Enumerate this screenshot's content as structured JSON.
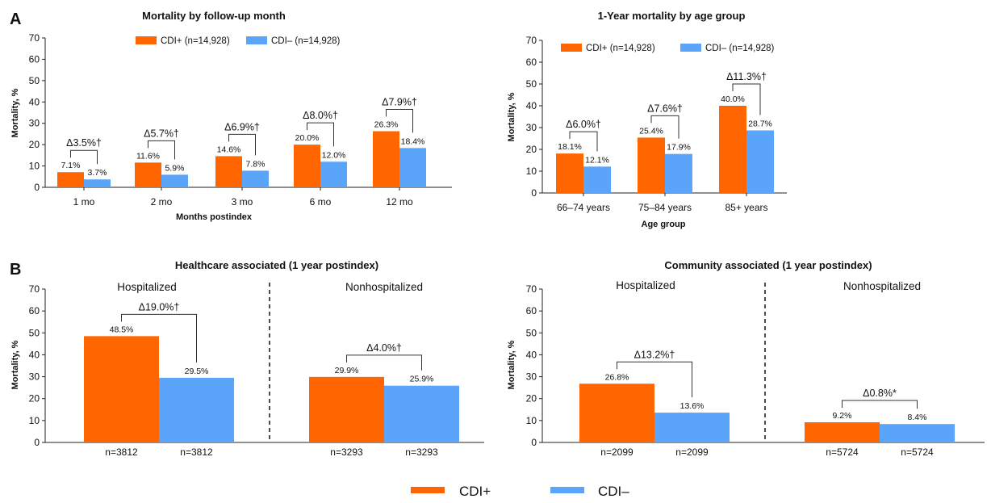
{
  "colors": {
    "cdi_pos": "#FF6600",
    "cdi_neg": "#5AA5FA"
  },
  "panels": [
    {
      "letter": "A"
    },
    {
      "letter": "B"
    }
  ],
  "bottom_legend": [
    "CDI+",
    "CDI–"
  ],
  "chart_data": [
    {
      "type": "bar",
      "title": "Mortality by follow-up month",
      "xlabel": "Months postindex",
      "ylabel": "Mortality, %",
      "ylim": [
        0,
        70
      ],
      "yticks": [
        "0",
        "10",
        "20",
        "30",
        "40",
        "50",
        "60",
        "70"
      ],
      "categories": [
        "1 mo",
        "2 mo",
        "3 mo",
        "6 mo",
        "12 mo"
      ],
      "legend": [
        "CDI+ (n=14,928)",
        "CDI– (n=14,928)"
      ],
      "series": [
        {
          "name": "CDI+ (n=14,928)",
          "values": [
            7.1,
            11.6,
            14.6,
            20.0,
            26.3
          ],
          "labels": [
            "7.1%",
            "11.6%",
            "14.6%",
            "20.0%",
            "26.3%"
          ]
        },
        {
          "name": "CDI– (n=14,928)",
          "values": [
            3.7,
            5.9,
            7.8,
            12.0,
            18.4
          ],
          "labels": [
            "3.7%",
            "5.9%",
            "7.8%",
            "12.0%",
            "18.4%"
          ]
        }
      ],
      "deltas": [
        "Δ3.5%†",
        "Δ5.7%†",
        "Δ6.9%†",
        "Δ8.0%†",
        "Δ7.9%†"
      ]
    },
    {
      "type": "bar",
      "title": "1-Year mortality by age group",
      "xlabel": "Age group",
      "ylabel": "Mortality, %",
      "ylim": [
        0,
        70
      ],
      "yticks": [
        "0",
        "10",
        "20",
        "30",
        "40",
        "50",
        "60",
        "70"
      ],
      "categories": [
        "66–74 years",
        "75–84 years",
        "85+ years"
      ],
      "legend": [
        "CDI+ (n=14,928)",
        "CDI– (n=14,928)"
      ],
      "series": [
        {
          "name": "CDI+ (n=14,928)",
          "values": [
            18.1,
            25.4,
            40.0
          ],
          "labels": [
            "18.1%",
            "25.4%",
            "40.0%"
          ]
        },
        {
          "name": "CDI– (n=14,928)",
          "values": [
            12.1,
            17.9,
            28.7
          ],
          "labels": [
            "12.1%",
            "17.9%",
            "28.7%"
          ]
        }
      ],
      "deltas": [
        "Δ6.0%†",
        "Δ7.6%†",
        "Δ11.3%†"
      ]
    },
    {
      "type": "bar",
      "title": "Healthcare associated (1 year postindex)",
      "ylabel": "Mortality, %",
      "ylim": [
        0,
        70
      ],
      "yticks": [
        "0",
        "10",
        "20",
        "30",
        "40",
        "50",
        "60",
        "70"
      ],
      "groups": [
        "Hospitalized",
        "Nonhospitalized"
      ],
      "series": [
        {
          "name": "CDI+",
          "values": [
            48.5,
            29.9
          ],
          "labels": [
            "48.5%",
            "29.9%"
          ],
          "n": [
            "n=3812",
            "n=3293"
          ]
        },
        {
          "name": "CDI–",
          "values": [
            29.5,
            25.9
          ],
          "labels": [
            "29.5%",
            "25.9%"
          ],
          "n": [
            "n=3812",
            "n=3293"
          ]
        }
      ],
      "deltas": [
        "Δ19.0%†",
        "Δ4.0%†"
      ]
    },
    {
      "type": "bar",
      "title": "Community associated (1 year postindex)",
      "ylabel": "Mortality, %",
      "ylim": [
        0,
        70
      ],
      "yticks": [
        "0",
        "10",
        "20",
        "30",
        "40",
        "50",
        "60",
        "70"
      ],
      "groups": [
        "Hospitalized",
        "Nonhospitalized"
      ],
      "series": [
        {
          "name": "CDI+",
          "values": [
            26.8,
            9.2
          ],
          "labels": [
            "26.8%",
            "9.2%"
          ],
          "n": [
            "n=2099",
            "n=5724"
          ]
        },
        {
          "name": "CDI–",
          "values": [
            13.6,
            8.4
          ],
          "labels": [
            "13.6%",
            "8.4%"
          ],
          "n": [
            "n=2099",
            "n=5724"
          ]
        }
      ],
      "deltas": [
        "Δ13.2%†",
        "Δ0.8%*"
      ]
    }
  ]
}
